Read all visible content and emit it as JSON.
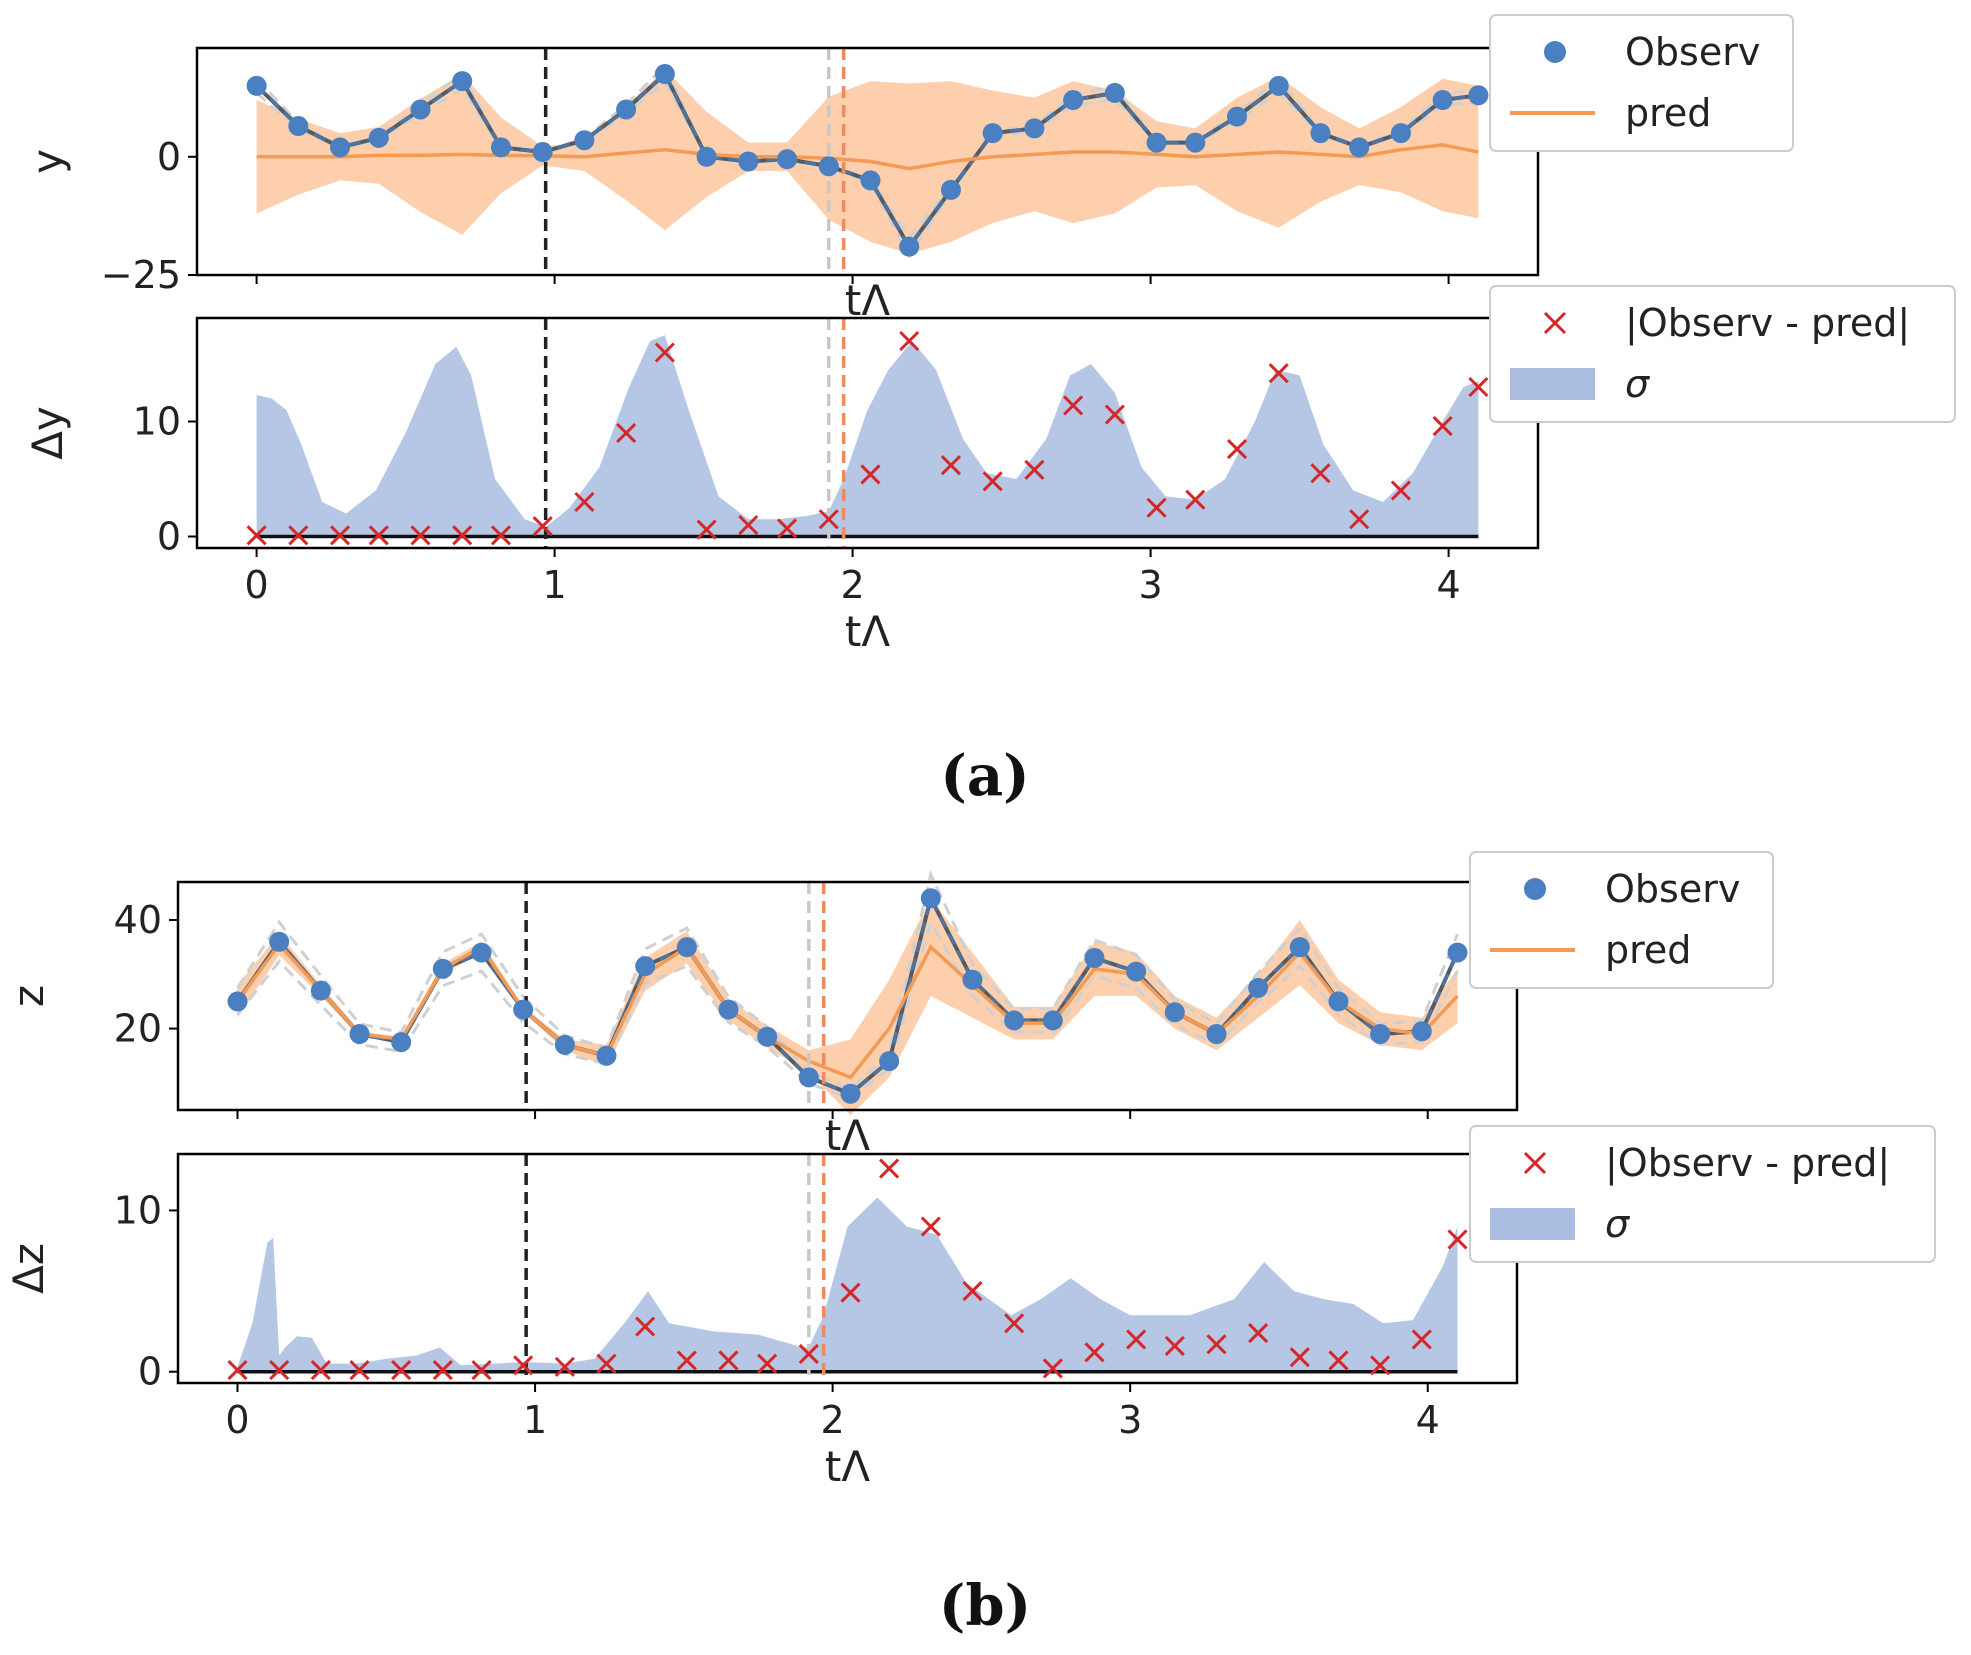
{
  "figure": {
    "captions": [
      "(a)",
      "(b)"
    ],
    "colors": {
      "observed": "#4a7fc1",
      "pred": "#f39a55",
      "band": "#fcbf91",
      "sigma": "#a8bde0",
      "residual": "#d62728",
      "vline_black": "#222222",
      "vline_gray": "#c8c8c8",
      "vline_orange": "#ee8a5c"
    }
  },
  "chart_data": [
    {
      "panel": "a",
      "type": "line",
      "ylabel": "y",
      "xlabel": "tΛ",
      "xlim": [
        -0.2,
        4.3
      ],
      "ylim": [
        -25,
        23
      ],
      "xticks": [
        0,
        1,
        2,
        3,
        4
      ],
      "yticks": [
        -25,
        0
      ],
      "ytick_labels": [
        "−25",
        "0"
      ],
      "vlines": [
        {
          "x": 0.97,
          "style": "black"
        },
        {
          "x": 1.92,
          "style": "gray"
        },
        {
          "x": 1.97,
          "style": "orange"
        }
      ],
      "legend": [
        "Observ",
        "pred"
      ],
      "x": [
        0,
        0.14,
        0.28,
        0.41,
        0.55,
        0.69,
        0.82,
        0.96,
        1.1,
        1.24,
        1.37,
        1.51,
        1.65,
        1.78,
        1.92,
        2.06,
        2.19,
        2.33,
        2.47,
        2.61,
        2.74,
        2.88,
        3.02,
        3.15,
        3.29,
        3.43,
        3.57,
        3.7,
        3.84,
        3.98,
        4.1
      ],
      "series": [
        {
          "name": "Observ",
          "values": [
            15,
            6.5,
            2,
            4,
            10,
            16,
            2,
            1,
            3.5,
            10,
            17.5,
            0,
            -1,
            -0.5,
            -2,
            -5,
            -19,
            -7,
            5,
            6,
            12,
            13.5,
            3,
            3,
            8.5,
            15,
            5,
            2,
            5,
            12,
            13
          ]
        },
        {
          "name": "pred",
          "values": [
            0,
            0,
            0,
            0.3,
            0.3,
            0.5,
            0.3,
            0.2,
            0,
            0.8,
            1.5,
            0.5,
            0,
            0,
            -0.3,
            -1,
            -2.5,
            -1,
            0,
            0.5,
            1,
            1,
            0.5,
            0,
            0.5,
            1,
            0.5,
            0,
            1.5,
            2.5,
            1
          ]
        }
      ],
      "band_halfwidth": [
        12,
        8,
        5,
        6,
        12,
        17,
        8,
        2,
        3,
        10,
        17,
        9,
        3,
        3,
        13,
        17,
        18,
        17,
        14,
        12,
        15,
        13,
        7,
        6,
        12,
        16,
        10,
        6,
        9,
        14,
        14
      ]
    },
    {
      "panel": "a",
      "type": "area",
      "ylabel": "Δy",
      "xlabel": "tΛ",
      "xlim": [
        -0.2,
        4.3
      ],
      "ylim": [
        -1,
        19
      ],
      "xticks": [
        0,
        1,
        2,
        3,
        4
      ],
      "yticks": [
        0,
        10
      ],
      "vlines": [
        {
          "x": 0.97,
          "style": "black"
        },
        {
          "x": 1.92,
          "style": "gray"
        },
        {
          "x": 1.97,
          "style": "orange"
        }
      ],
      "legend": [
        "|Observ - pred|",
        "σ"
      ],
      "sigma_x": [
        0,
        0.05,
        0.1,
        0.15,
        0.22,
        0.3,
        0.4,
        0.5,
        0.6,
        0.67,
        0.72,
        0.8,
        0.9,
        0.97,
        1.05,
        1.15,
        1.25,
        1.32,
        1.37,
        1.45,
        1.55,
        1.65,
        1.75,
        1.85,
        1.92,
        1.97,
        2.05,
        2.12,
        2.2,
        2.28,
        2.37,
        2.45,
        2.55,
        2.65,
        2.73,
        2.8,
        2.88,
        2.97,
        3.05,
        3.15,
        3.25,
        3.35,
        3.42,
        3.5,
        3.58,
        3.68,
        3.78,
        3.88,
        3.98,
        4.05,
        4.1
      ],
      "sigma_values": [
        12.3,
        12,
        11,
        8,
        3,
        2,
        4,
        9,
        15,
        16.5,
        14,
        5,
        1.5,
        0.8,
        2.5,
        6,
        13,
        17,
        17.5,
        11,
        3.5,
        1.5,
        1.5,
        1.8,
        2.2,
        5,
        11,
        14.5,
        17,
        14.5,
        8.5,
        5.5,
        5,
        8.5,
        14,
        15,
        12.5,
        6,
        3.5,
        3.2,
        5,
        10,
        14.5,
        14,
        8,
        4,
        3,
        5.5,
        10,
        13,
        13.5
      ],
      "residual_x": [
        0,
        0.14,
        0.28,
        0.41,
        0.55,
        0.69,
        0.82,
        0.96,
        1.1,
        1.24,
        1.37,
        1.51,
        1.65,
        1.78,
        1.92,
        2.06,
        2.19,
        2.33,
        2.47,
        2.61,
        2.74,
        2.88,
        3.02,
        3.15,
        3.29,
        3.43,
        3.57,
        3.7,
        3.84,
        3.98,
        4.1
      ],
      "residual_values": [
        0.1,
        0.1,
        0.1,
        0.1,
        0.1,
        0.1,
        0.1,
        0.9,
        3,
        9,
        16,
        0.6,
        1,
        0.7,
        1.5,
        5.4,
        17,
        6.2,
        4.8,
        5.8,
        11.4,
        10.6,
        2.5,
        3.2,
        7.6,
        14.2,
        5.5,
        1.5,
        4,
        9.6,
        13
      ]
    },
    {
      "panel": "b",
      "type": "line",
      "ylabel": "z",
      "xlabel": "tΛ",
      "xlim": [
        -0.2,
        4.3
      ],
      "ylim": [
        5,
        47
      ],
      "xticks": [
        0,
        1,
        2,
        3,
        4
      ],
      "yticks": [
        20,
        40
      ],
      "vlines": [
        {
          "x": 0.97,
          "style": "black"
        },
        {
          "x": 1.92,
          "style": "gray"
        },
        {
          "x": 1.97,
          "style": "orange"
        }
      ],
      "legend": [
        "Observ",
        "pred"
      ],
      "x": [
        0,
        0.14,
        0.28,
        0.41,
        0.55,
        0.69,
        0.82,
        0.96,
        1.1,
        1.24,
        1.37,
        1.51,
        1.65,
        1.78,
        1.92,
        2.06,
        2.19,
        2.33,
        2.47,
        2.61,
        2.74,
        2.88,
        3.02,
        3.15,
        3.29,
        3.43,
        3.57,
        3.7,
        3.84,
        3.98,
        4.1
      ],
      "series": [
        {
          "name": "Observ",
          "values": [
            25,
            36,
            27,
            19,
            17.5,
            31,
            34,
            23.5,
            17,
            15,
            31.5,
            35,
            23.5,
            18.5,
            11,
            8,
            14,
            44,
            29,
            21.5,
            21.5,
            33,
            30.5,
            23,
            19,
            27.5,
            35,
            25,
            19,
            19.5,
            34
          ]
        },
        {
          "name": "pred",
          "values": [
            25,
            35.5,
            27,
            19,
            18,
            31,
            35,
            23.5,
            17,
            15,
            30,
            35,
            23.5,
            18.5,
            14,
            11,
            20,
            35,
            28,
            21,
            21,
            31,
            30,
            23,
            19,
            26,
            34,
            25,
            20,
            19,
            26
          ]
        }
      ],
      "band_halfwidth": [
        3,
        2,
        1,
        0.5,
        0.5,
        1,
        1,
        0.5,
        1,
        2,
        3,
        3,
        2,
        2,
        2,
        7,
        9,
        9,
        6,
        3,
        3,
        5,
        4,
        3,
        3,
        4,
        6,
        4,
        3,
        3,
        5
      ]
    },
    {
      "panel": "b",
      "type": "area",
      "ylabel": "Δz",
      "xlabel": "tΛ",
      "xlim": [
        -0.2,
        4.3
      ],
      "ylim": [
        -0.7,
        13.5
      ],
      "xticks": [
        0,
        1,
        2,
        3,
        4
      ],
      "yticks": [
        0,
        10
      ],
      "vlines": [
        {
          "x": 0.97,
          "style": "black"
        },
        {
          "x": 1.92,
          "style": "gray"
        },
        {
          "x": 1.97,
          "style": "orange"
        }
      ],
      "legend": [
        "|Observ - pred|",
        "σ"
      ],
      "sigma_x": [
        0,
        0.05,
        0.1,
        0.12,
        0.14,
        0.16,
        0.2,
        0.25,
        0.3,
        0.4,
        0.5,
        0.6,
        0.68,
        0.75,
        0.97,
        1.1,
        1.2,
        1.3,
        1.38,
        1.45,
        1.6,
        1.75,
        1.9,
        1.92,
        1.97,
        2.05,
        2.15,
        2.25,
        2.35,
        2.45,
        2.6,
        2.7,
        2.8,
        2.9,
        3.0,
        3.2,
        3.35,
        3.45,
        3.55,
        3.65,
        3.75,
        3.85,
        3.95,
        4.05,
        4.1
      ],
      "sigma_values": [
        0.3,
        3,
        8,
        8.3,
        1,
        1.5,
        2.2,
        2.1,
        0.5,
        0.5,
        0.8,
        1,
        1.5,
        0.4,
        0.6,
        0.5,
        0.8,
        3,
        5,
        3,
        2.5,
        2.3,
        1.5,
        1.5,
        3.5,
        9,
        10.8,
        9,
        8.5,
        5.5,
        3.5,
        4.5,
        5.8,
        4.5,
        3.5,
        3.5,
        4.5,
        6.8,
        5,
        4.5,
        4.2,
        3,
        3.2,
        6.5,
        9
      ]
    }
  ],
  "residuals_b": {
    "x": [
      0,
      0.14,
      0.28,
      0.41,
      0.55,
      0.69,
      0.82,
      0.96,
      1.1,
      1.24,
      1.37,
      1.51,
      1.65,
      1.78,
      1.92,
      2.06,
      2.19,
      2.33,
      2.47,
      2.61,
      2.74,
      2.88,
      3.02,
      3.15,
      3.29,
      3.43,
      3.57,
      3.7,
      3.84,
      3.98,
      4.1
    ],
    "values": [
      0.1,
      0.1,
      0.1,
      0.1,
      0.1,
      0.1,
      0.1,
      0.4,
      0.3,
      0.5,
      2.8,
      0.7,
      0.7,
      0.5,
      1.1,
      4.9,
      12.6,
      9,
      5,
      3,
      0.2,
      1.2,
      2,
      1.6,
      1.7,
      2.4,
      0.9,
      0.7,
      0.4,
      2,
      8.2
    ]
  }
}
